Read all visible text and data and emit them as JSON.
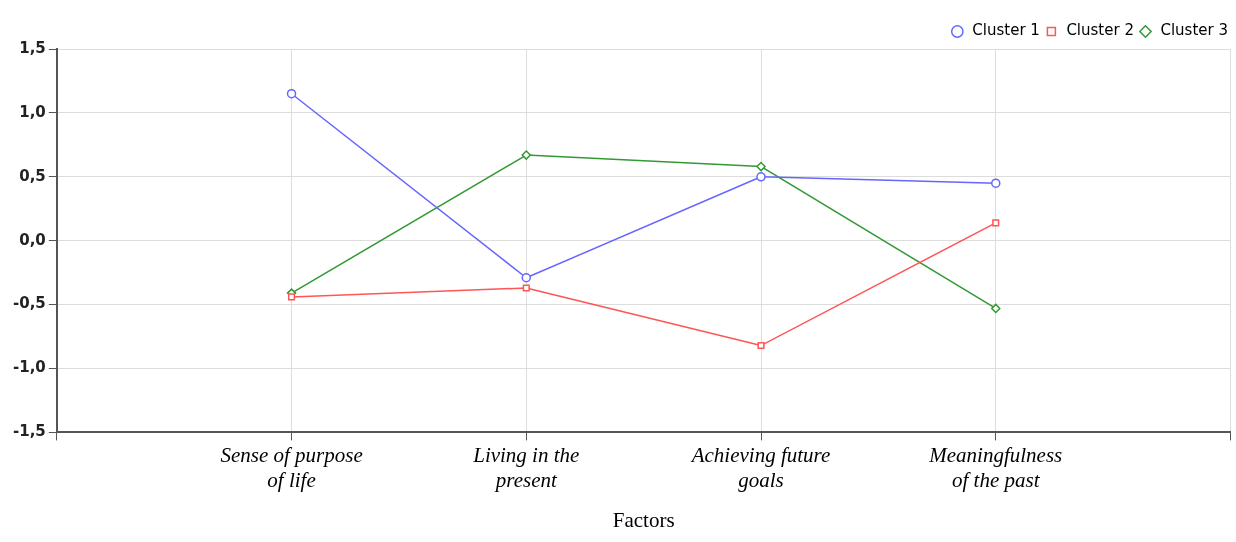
{
  "chart_data": {
    "type": "line",
    "xlabel": "Factors",
    "categories": [
      null,
      "Sense of purpose of life",
      "Living in the present",
      "Achieving future goals",
      "Meaningfulness of the past",
      null
    ],
    "series": [
      {
        "name": "Cluster 1",
        "color": "#6666ff",
        "marker": "circle",
        "values": [
          null,
          1.15,
          -0.29,
          0.5,
          0.45,
          null
        ]
      },
      {
        "name": "Cluster 2",
        "color": "#ff5555",
        "marker": "square",
        "values": [
          null,
          -0.44,
          -0.37,
          -0.82,
          0.14,
          null
        ]
      },
      {
        "name": "Cluster 3",
        "color": "#339933",
        "marker": "diamond",
        "values": [
          null,
          -0.41,
          0.67,
          0.58,
          -0.53,
          null
        ]
      }
    ],
    "ylim": [
      -1.5,
      1.5
    ],
    "yticks": [
      {
        "value": -1.5,
        "label": "-1,5"
      },
      {
        "value": -1,
        "label": "-1,0"
      },
      {
        "value": -0.5,
        "label": "-0,5"
      },
      {
        "value": 0,
        "label": "0,0"
      },
      {
        "value": 0.5,
        "label": "0,5"
      },
      {
        "value": 1,
        "label": "1,0"
      },
      {
        "value": 1.5,
        "label": "1,5"
      }
    ],
    "grid": true,
    "legend": "top right",
    "line_style": "solid"
  }
}
